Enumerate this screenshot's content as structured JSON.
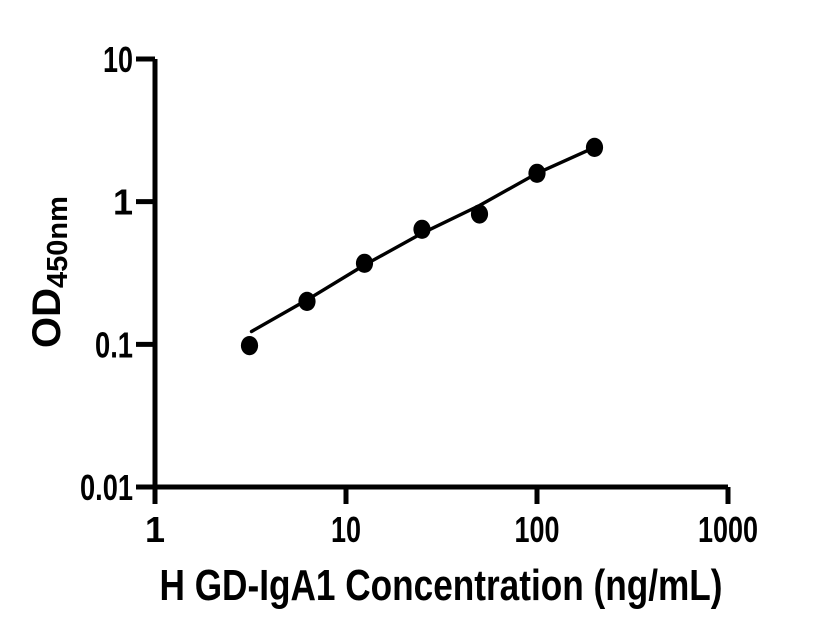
{
  "page": {
    "background_color": "#ffffff",
    "foreground_color": "#000000"
  },
  "chart_data": {
    "type": "scatter",
    "title": "",
    "xlabel": "H GD-IgA1 Concentration (ng/mL)",
    "ylabel_main": "OD",
    "ylabel_sub": "450nm",
    "x_scale": "log",
    "y_scale": "log",
    "xlim": [
      1,
      1000
    ],
    "ylim": [
      0.01,
      10
    ],
    "grid": false,
    "legend": false,
    "x_ticks": [
      {
        "value": 1,
        "label": "1"
      },
      {
        "value": 10,
        "label": "10"
      },
      {
        "value": 100,
        "label": "100"
      },
      {
        "value": 1000,
        "label": "1000"
      }
    ],
    "y_ticks": [
      {
        "value": 0.01,
        "label": "0.01"
      },
      {
        "value": 0.1,
        "label": "0.1"
      },
      {
        "value": 1,
        "label": "1"
      },
      {
        "value": 10,
        "label": "10"
      }
    ],
    "series": [
      {
        "marker": "filled-circle",
        "color": "#000000",
        "x": [
          3.125,
          6.25,
          12.5,
          25,
          50,
          100,
          200
        ],
        "y": [
          0.098,
          0.2,
          0.37,
          0.64,
          0.82,
          1.58,
          2.4
        ]
      }
    ],
    "fit_line": {
      "color": "#000000",
      "points": [
        [
          3.2,
          0.123
        ],
        [
          6.25,
          0.205
        ],
        [
          12.5,
          0.36
        ],
        [
          25,
          0.6
        ],
        [
          50,
          0.94
        ],
        [
          100,
          1.58
        ],
        [
          200,
          2.4
        ]
      ]
    }
  }
}
